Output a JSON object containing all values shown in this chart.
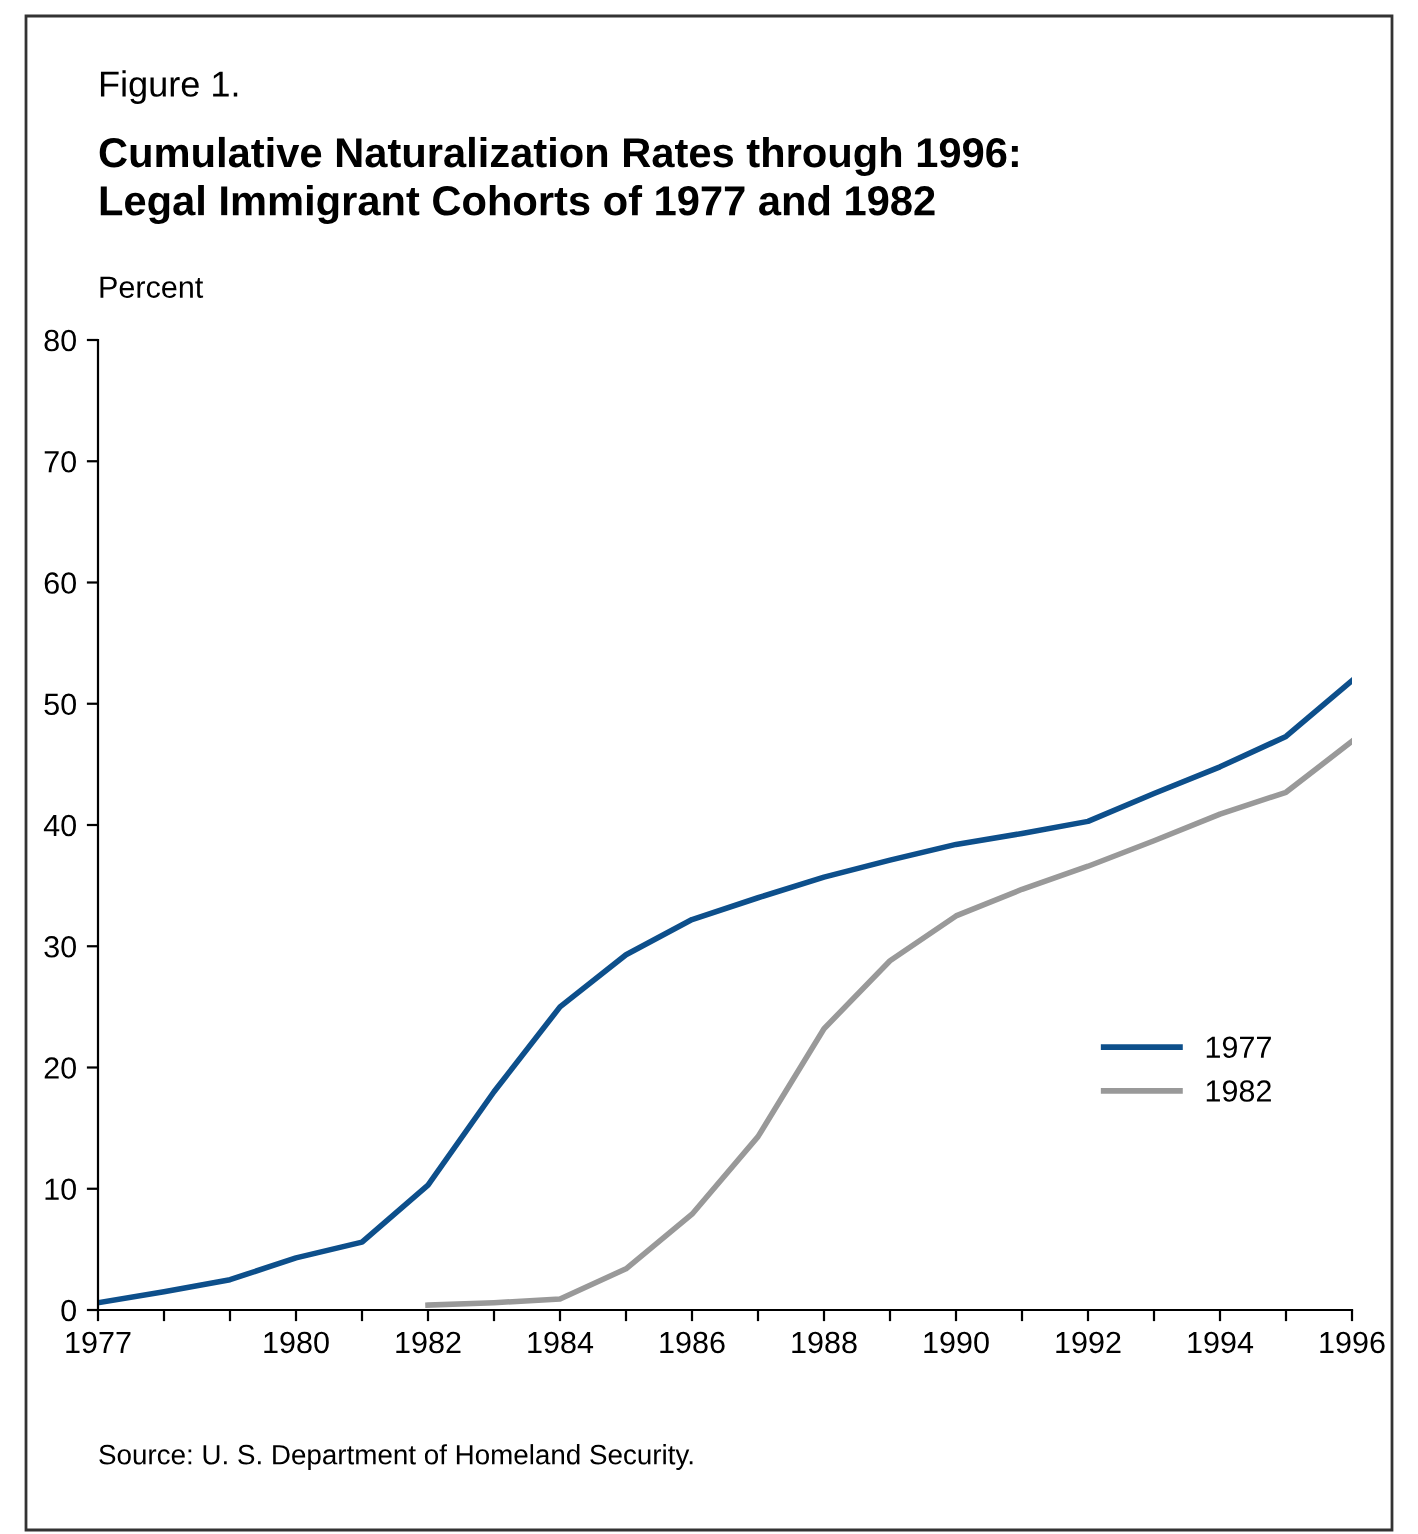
{
  "chart_data": {
    "type": "line",
    "title": "Cumulative Naturalization Rates through 1996:\nLegal Immigrant Cohorts of 1977 and 1982",
    "ylabel": "Percent",
    "annotations": [
      "Figure 1.",
      "Source: U. S. Department of Homeland Security."
    ],
    "x": [
      1977,
      1978,
      1979,
      1980,
      1981,
      1982,
      1983,
      1984,
      1985,
      1986,
      1987,
      1988,
      1989,
      1990,
      1991,
      1992,
      1993,
      1994,
      1995,
      1996
    ],
    "series": [
      {
        "name": "1977",
        "color": "#0d4f8b",
        "values": [
          0.6,
          1.5,
          2.5,
          4.3,
          5.6,
          10.3,
          18,
          25,
          29.3,
          32.2,
          34,
          35.7,
          37.1,
          38.4,
          39.3,
          40.3,
          42.6,
          44.8,
          47.3,
          51.9
        ]
      },
      {
        "name": "1982",
        "color": "#999999",
        "values": [
          null,
          null,
          null,
          null,
          null,
          0.4,
          0.6,
          0.9,
          3.4,
          7.9,
          14.3,
          23.2,
          28.8,
          32.5,
          34.7,
          36.6,
          38.7,
          40.9,
          42.7,
          46.9
        ]
      }
    ],
    "xlim": [
      1977,
      1996
    ],
    "xticks": [
      1977,
      {
        "value": 1978,
        "label": null
      },
      {
        "value": 1979,
        "label": null
      },
      1980,
      {
        "value": 1981,
        "label": null
      },
      1982,
      {
        "value": 1983,
        "label": null
      },
      1984,
      {
        "value": 1985,
        "label": null
      },
      1986,
      {
        "value": 1987,
        "label": null
      },
      1988,
      {
        "value": 1989,
        "label": null
      },
      1990,
      {
        "value": 1991,
        "label": null
      },
      1992,
      {
        "value": 1993,
        "label": null
      },
      1994,
      {
        "value": 1995,
        "label": null
      },
      1996
    ],
    "ylim": [
      0,
      80
    ],
    "yticks": [
      0,
      10,
      20,
      30,
      40,
      50,
      60,
      70,
      80
    ],
    "grid": false,
    "legend": "right",
    "marker": "none",
    "line_style": "solid"
  }
}
